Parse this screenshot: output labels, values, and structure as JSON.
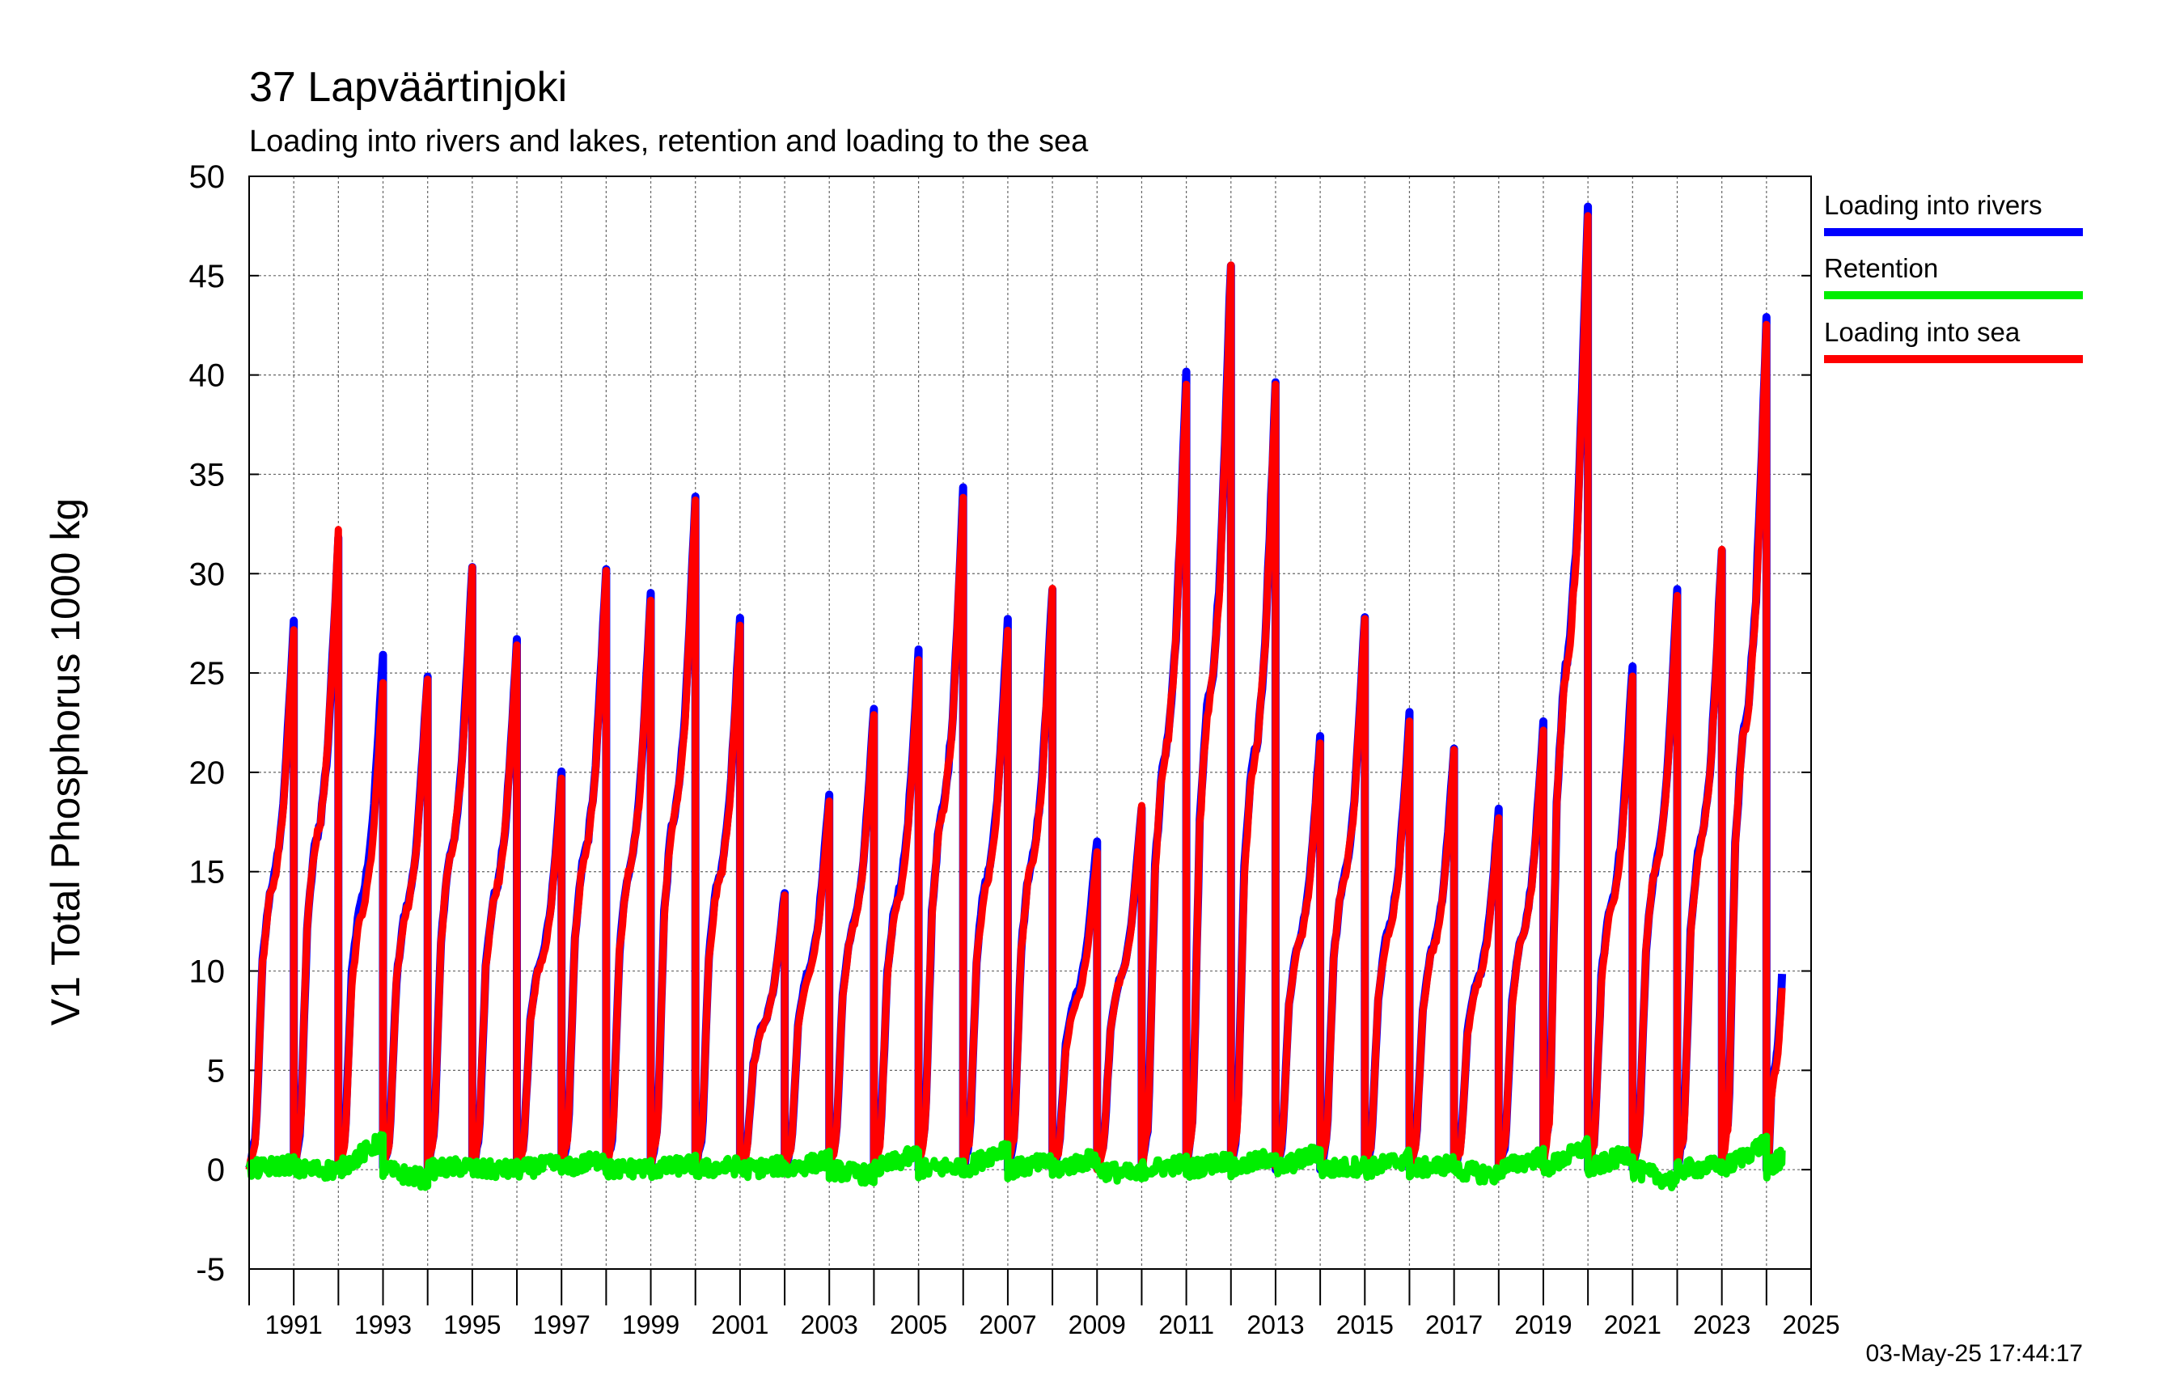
{
  "chart_data": {
    "type": "line",
    "title": "37 Lapväärtinjoki",
    "subtitle": "Loading into rivers and lakes, retention and loading to the sea",
    "ylabel": "V1 Total Phosphorus 1000 kg",
    "xlabel": "",
    "timestamp": "03-May-25 17:44:17",
    "ylim": [
      -5,
      50
    ],
    "xlim": [
      1990.0,
      2025.0
    ],
    "yticks": [
      -5,
      0,
      5,
      10,
      15,
      20,
      25,
      30,
      35,
      40,
      45,
      50
    ],
    "xticks": [
      "1991",
      "1993",
      "1995",
      "1997",
      "1999",
      "2001",
      "2003",
      "2005",
      "2007",
      "2009",
      "2011",
      "2013",
      "2015",
      "2017",
      "2019",
      "2021",
      "2023",
      "2025"
    ],
    "grid": true,
    "legend_position": "right",
    "x_unit": "year",
    "cumulative": "resets each year",
    "years": [
      1990,
      1991,
      1992,
      1993,
      1994,
      1995,
      1996,
      1997,
      1998,
      1999,
      2000,
      2001,
      2002,
      2003,
      2004,
      2005,
      2006,
      2007,
      2008,
      2009,
      2010,
      2011,
      2012,
      2013,
      2014,
      2015,
      2016,
      2017,
      2018,
      2019,
      2020,
      2021,
      2022,
      2023,
      2024
    ],
    "series": [
      {
        "name": "Loading into rivers",
        "color": "#0000ff",
        "year_end_values": [
          27.5,
          32.0,
          26.0,
          25.0,
          30.5,
          26.7,
          19.9,
          30.4,
          29.0,
          34.0,
          27.8,
          14.0,
          19.0,
          23.2,
          26.1,
          34.2,
          27.8,
          29.3,
          16.6,
          18.3,
          40.0,
          45.7,
          39.7,
          21.9,
          27.8,
          22.9,
          21.3,
          18.1,
          22.4,
          48.7,
          25.5,
          29.2,
          31.4,
          43.0,
          9.8
        ]
      },
      {
        "name": "Retention",
        "color": "#00ee00",
        "year_end_values": [
          0.3,
          0.0,
          1.5,
          -0.5,
          0.2,
          0.0,
          0.3,
          0.6,
          0.1,
          0.3,
          0.2,
          0.2,
          0.5,
          -0.3,
          0.8,
          0.2,
          1.2,
          0.4,
          0.6,
          -0.3,
          0.3,
          0.5,
          0.7,
          0.9,
          0.2,
          0.6,
          0.3,
          -0.3,
          0.7,
          1.2,
          0.9,
          -0.6,
          0.2,
          1.4,
          0.6
        ]
      },
      {
        "name": "Loading into sea",
        "color": "#ff0000",
        "year_end_values": [
          27.2,
          32.0,
          24.6,
          24.8,
          30.3,
          26.6,
          19.6,
          30.2,
          28.8,
          33.7,
          27.5,
          13.8,
          18.6,
          23.0,
          25.6,
          34.0,
          27.3,
          29.1,
          16.0,
          18.2,
          39.8,
          45.3,
          39.4,
          21.6,
          27.6,
          22.5,
          21.0,
          17.8,
          22.1,
          48.3,
          25.0,
          29.0,
          31.1,
          42.5,
          9.2
        ]
      }
    ]
  }
}
